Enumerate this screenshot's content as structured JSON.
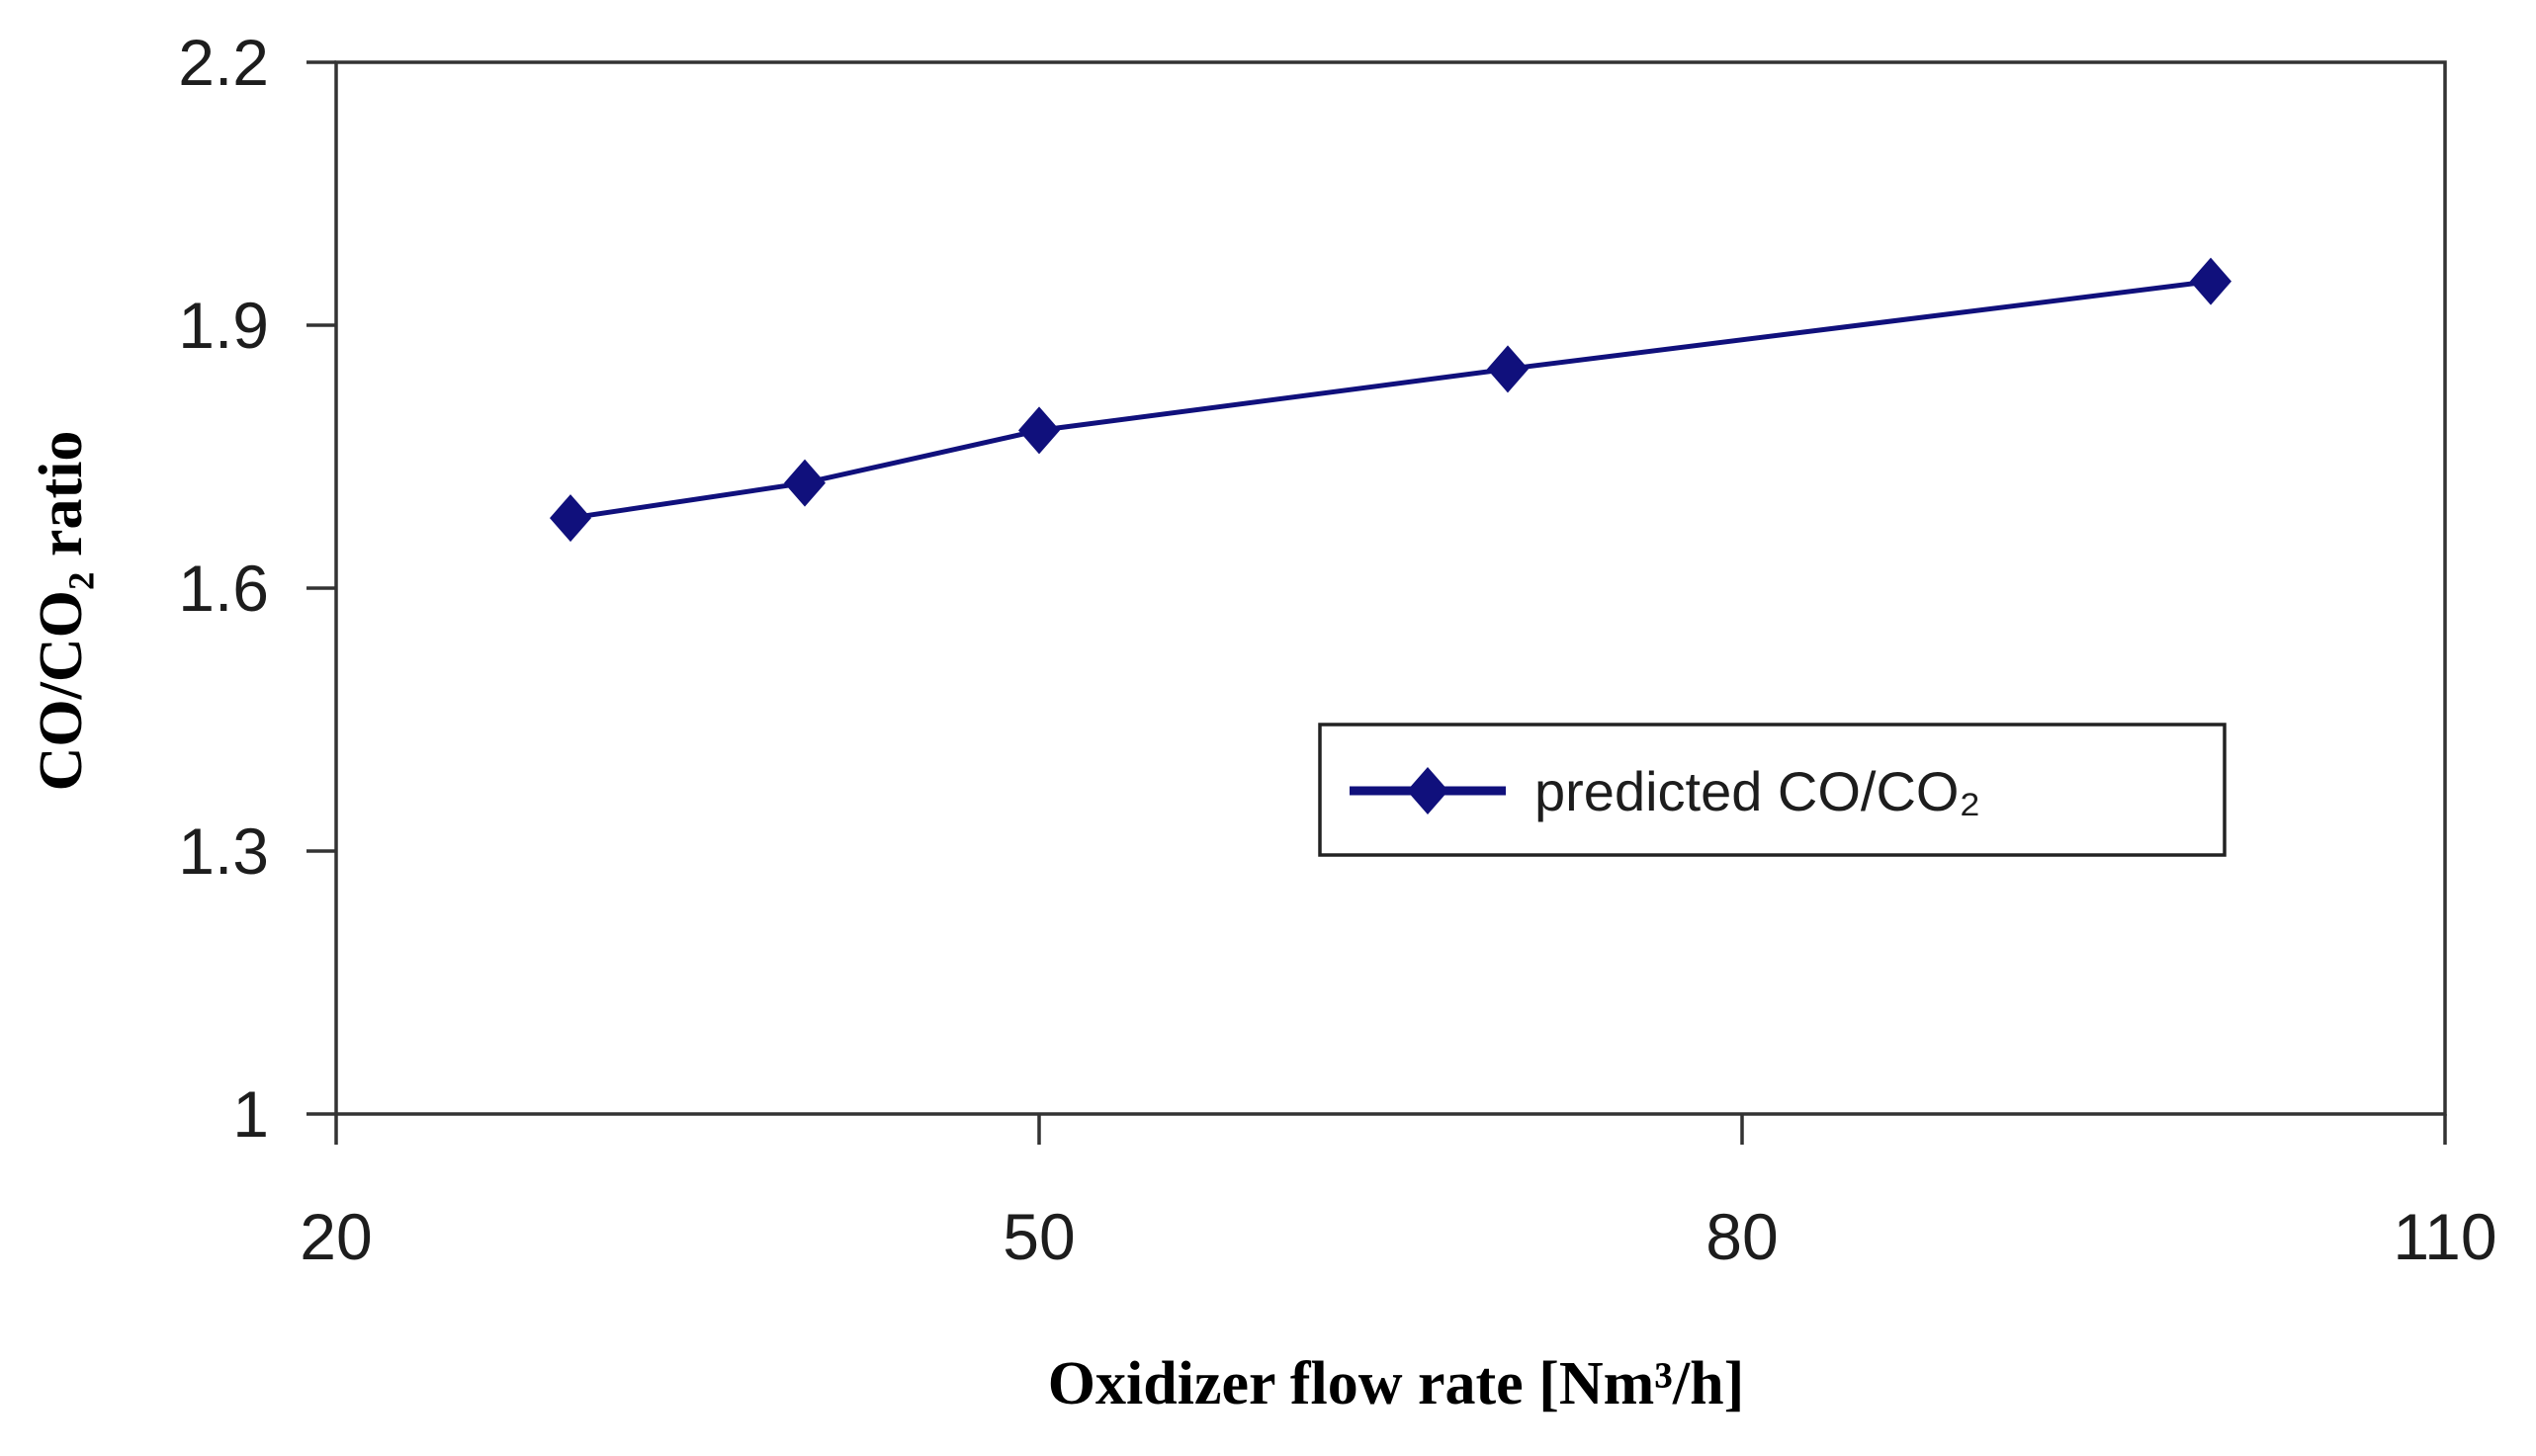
{
  "chart_data": {
    "type": "line",
    "title": "",
    "xlabel": "Oxidizer flow rate [Nm³/h]",
    "ylabel": "CO/CO₂ ratio",
    "series": [
      {
        "name": "predicted CO/CO₂",
        "x": [
          30,
          40,
          50,
          70,
          100
        ],
        "y": [
          1.68,
          1.72,
          1.78,
          1.85,
          1.95
        ],
        "color": "#10107c",
        "marker": "diamond",
        "line_style": "solid"
      }
    ],
    "xlim": [
      20,
      110
    ],
    "ylim": [
      1.0,
      2.2
    ],
    "xticks": [
      20,
      50,
      80,
      110
    ],
    "xtick_labels": [
      "20",
      "50",
      "80",
      "110"
    ],
    "yticks": [
      1.0,
      1.3,
      1.6,
      1.9,
      2.2
    ],
    "ytick_labels": [
      "1",
      "1.3",
      "1.6",
      "1.9",
      "2.2"
    ],
    "grid": false,
    "legend_position": "inside-center-right",
    "colors": {
      "series_navy": "#10107c",
      "axis_frame": "#333333",
      "text": "#1d1d1d",
      "background": "#ffffff"
    }
  }
}
